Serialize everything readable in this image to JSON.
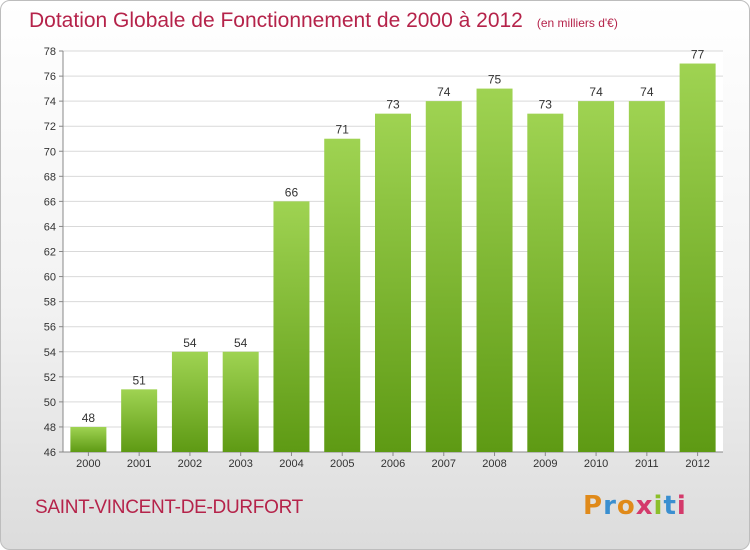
{
  "header": {
    "title": "Dotation Globale de Fonctionnement de 2000 à 2012",
    "subtitle": "(en milliers d'€)"
  },
  "footer": {
    "commune": "SAINT-VINCENT-DE-DURFORT",
    "logo_text": "Proxiti"
  },
  "colors": {
    "title": "#b5234a",
    "bar_top": "#9fd352",
    "bar_bottom": "#5e9a14",
    "grid": "#d9d9d9"
  },
  "chart_data": {
    "type": "bar",
    "title": "Dotation Globale de Fonctionnement de 2000 à 2012",
    "subtitle": "(en milliers d'€)",
    "categories": [
      "2000",
      "2001",
      "2002",
      "2003",
      "2004",
      "2005",
      "2006",
      "2007",
      "2008",
      "2009",
      "2010",
      "2011",
      "2012"
    ],
    "values": [
      48,
      51,
      54,
      54,
      66,
      71,
      73,
      74,
      75,
      73,
      74,
      74,
      77
    ],
    "data_labels": [
      "48",
      "51",
      "54",
      "54",
      "66",
      "71",
      "73",
      "74",
      "75",
      "73",
      "74",
      "74",
      "77"
    ],
    "ylim": [
      46,
      78
    ],
    "yticks": [
      46,
      48,
      50,
      52,
      54,
      56,
      58,
      60,
      62,
      64,
      66,
      68,
      70,
      72,
      74,
      76,
      78
    ],
    "ytick_labels": [
      "46",
      "48",
      "50",
      "52",
      "54",
      "56",
      "58",
      "60",
      "62",
      "64",
      "66",
      "68",
      "70",
      "72",
      "74",
      "76",
      "78"
    ],
    "xlabel": "",
    "ylabel": "",
    "grid": true,
    "legend": "none"
  }
}
